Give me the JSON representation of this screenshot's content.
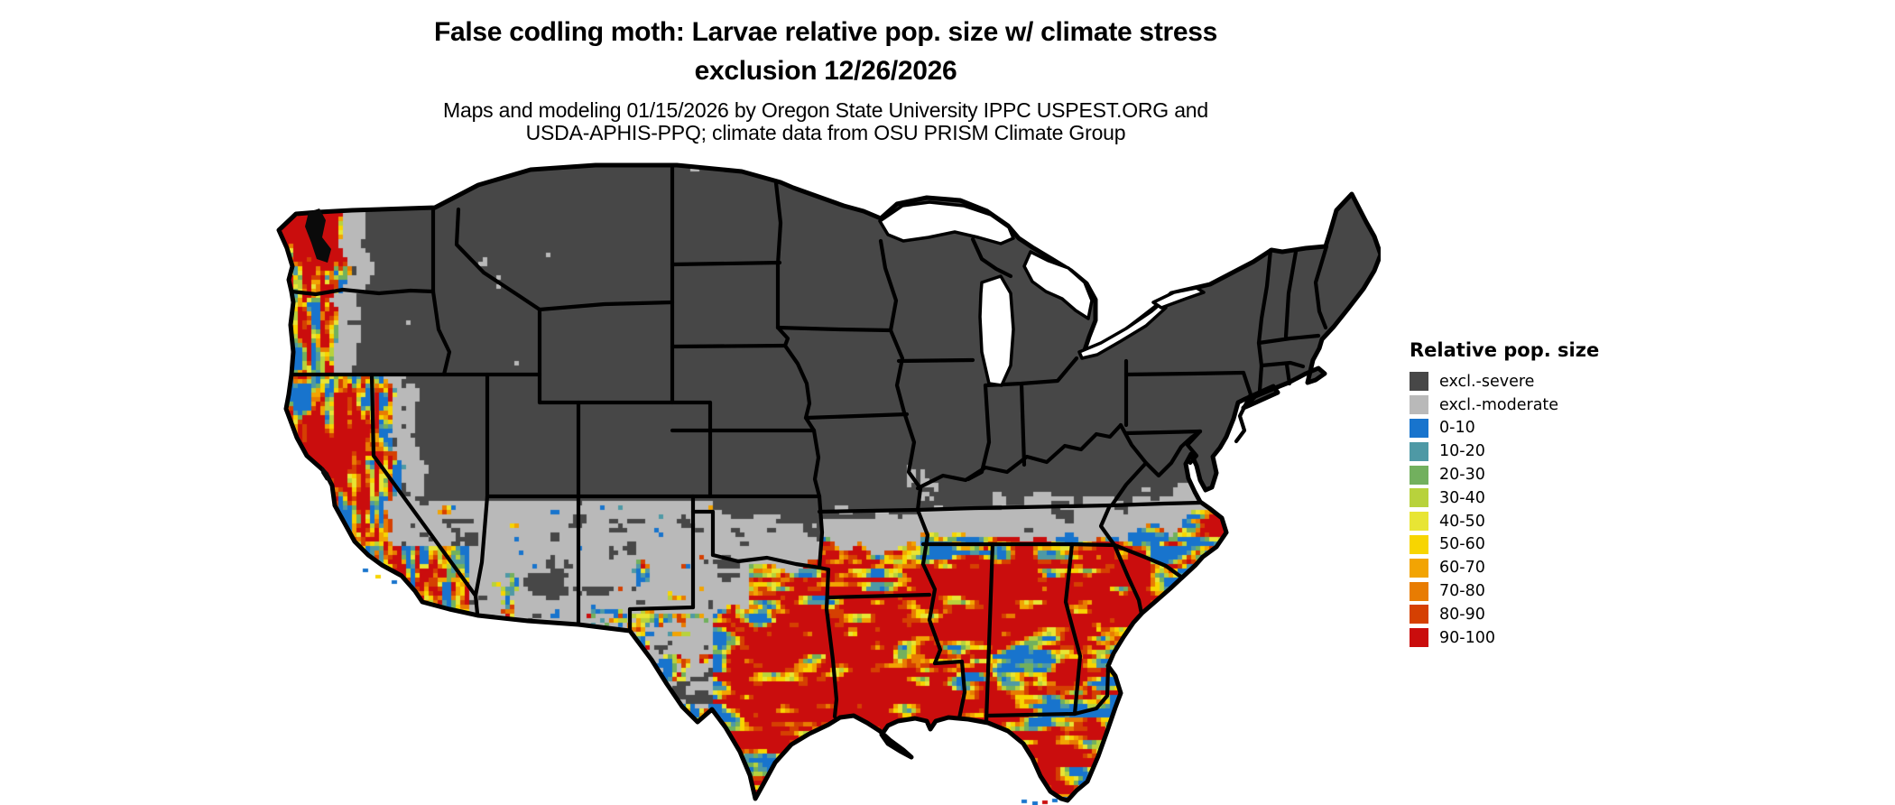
{
  "page": {
    "background": "#ffffff"
  },
  "title": {
    "line1": "False codling moth: Larvae relative pop. size w/ climate stress",
    "line2": "exclusion 12/26/2026"
  },
  "subtitle": {
    "line1": "Maps and modeling 01/15/2026 by Oregon State University IPPC USPEST.ORG and",
    "line2": "USDA-APHIS-PPQ; climate data from OSU PRISM Climate Group"
  },
  "legend": {
    "title": "Relative pop. size",
    "items": [
      {
        "label": "excl.-severe",
        "color": "#474747"
      },
      {
        "label": "excl.-moderate",
        "color": "#B9B9B9"
      },
      {
        "label": "0-10",
        "color": "#1874CD"
      },
      {
        "label": "10-20",
        "color": "#4E99A5"
      },
      {
        "label": "20-30",
        "color": "#72B05E"
      },
      {
        "label": "30-40",
        "color": "#B8D23C"
      },
      {
        "label": "40-50",
        "color": "#E8E534"
      },
      {
        "label": "50-60",
        "color": "#F7D501"
      },
      {
        "label": "60-70",
        "color": "#F2A403"
      },
      {
        "label": "70-80",
        "color": "#E87C02"
      },
      {
        "label": "80-90",
        "color": "#D54002"
      },
      {
        "label": "90-100",
        "color": "#CA0D0D"
      }
    ]
  },
  "map": {
    "type": "raster-risk-map",
    "region": "continental United States",
    "border_color": "#000000",
    "water_color": "#ffffff",
    "severe_exclusion_extent": "northern and interior states",
    "moderate_exclusion_extent": "band across southern plains, mid-south and mid-Atlantic coast",
    "population_extent": "southern states, Gulf coast, Florida, Atlantic coastal plain, Pacific coast valleys, southwestern deserts"
  }
}
